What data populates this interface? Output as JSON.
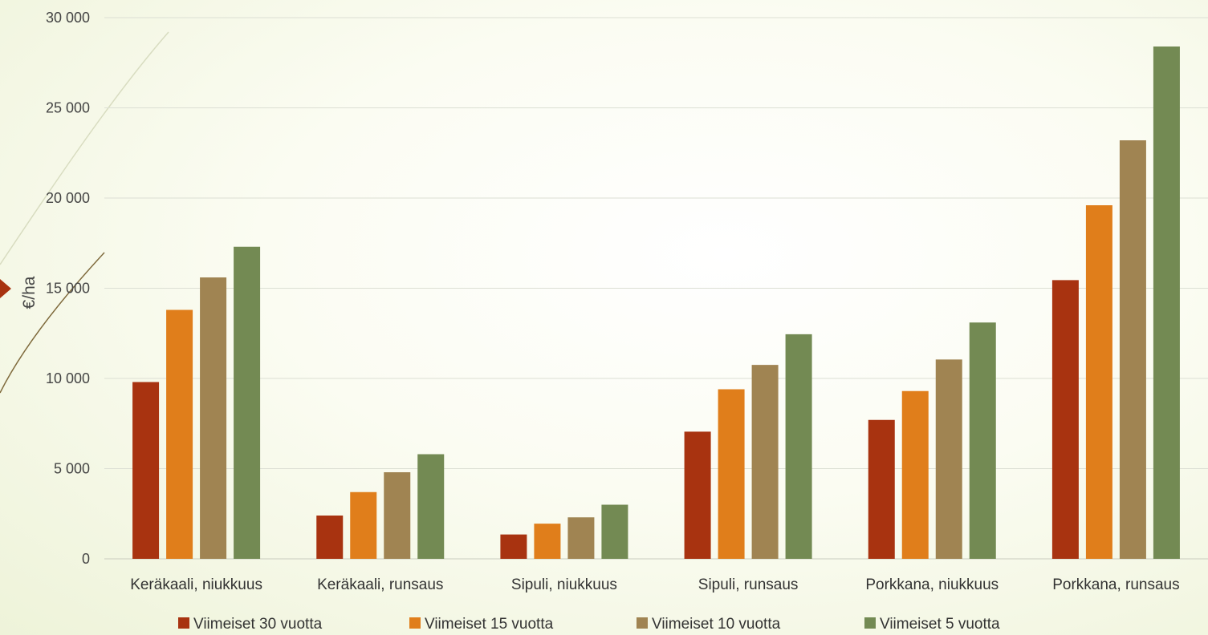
{
  "chart_data": {
    "type": "bar",
    "title": "",
    "ylabel": "€/ha",
    "xlabel": "",
    "ylim": [
      0,
      30000
    ],
    "yticks": [
      0,
      5000,
      10000,
      15000,
      20000,
      25000,
      30000
    ],
    "ytick_labels": [
      "0",
      "5 000",
      "10 000",
      "15 000",
      "20 000",
      "25 000",
      "30 000"
    ],
    "grid": true,
    "legend_position": "bottom",
    "categories": [
      "Keräkaali, niukkuus",
      "Keräkaali, runsaus",
      "Sipuli, niukkuus",
      "Sipuli, runsaus",
      "Porkkana, niukkuus",
      "Porkkana, runsaus"
    ],
    "series": [
      {
        "name": "Viimeiset 30 vuotta",
        "color": "#a83310",
        "values": [
          9800,
          2400,
          1350,
          7050,
          7700,
          15450
        ]
      },
      {
        "name": "Viimeiset 15 vuotta",
        "color": "#e07e1b",
        "values": [
          13800,
          3700,
          1950,
          9400,
          9300,
          19600
        ]
      },
      {
        "name": "Viimeiset 10 vuotta",
        "color": "#a08452",
        "values": [
          15600,
          4800,
          2300,
          10750,
          11050,
          23200
        ]
      },
      {
        "name": "Viimeiset 5 vuotta",
        "color": "#738a53",
        "values": [
          17300,
          5800,
          3000,
          12450,
          13100,
          28400
        ]
      }
    ]
  }
}
